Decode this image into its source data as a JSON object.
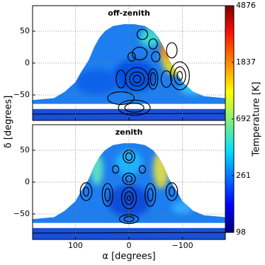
{
  "chart_data": {
    "type": "heatmap",
    "xlabel": "α [degrees]",
    "ylabel": "δ [degrees]",
    "grid": true,
    "panels": [
      {
        "title": "off-zenith",
        "show_xticklabels": false,
        "xlim": [
          180,
          -180
        ],
        "xticks": [
          100,
          0,
          {
            "value": -100,
            "label": "−100"
          }
        ],
        "ylim": [
          -90,
          90
        ],
        "yticks": [
          50,
          0,
          {
            "value": -50,
            "label": "−50"
          }
        ]
      },
      {
        "title": "zenith",
        "show_xticklabels": true,
        "xlim": [
          180,
          -180
        ],
        "xticks": [
          100,
          0,
          {
            "value": -100,
            "label": "−100"
          }
        ],
        "ylim": [
          -90,
          90
        ],
        "yticks": [
          50,
          0,
          {
            "value": -50,
            "label": "−50"
          }
        ]
      }
    ],
    "colorbar": {
      "label": "Temperature [K]",
      "scale": "log",
      "lim": [
        98,
        4876
      ],
      "ticks": [
        98,
        261,
        692,
        1837,
        4876
      ]
    }
  }
}
